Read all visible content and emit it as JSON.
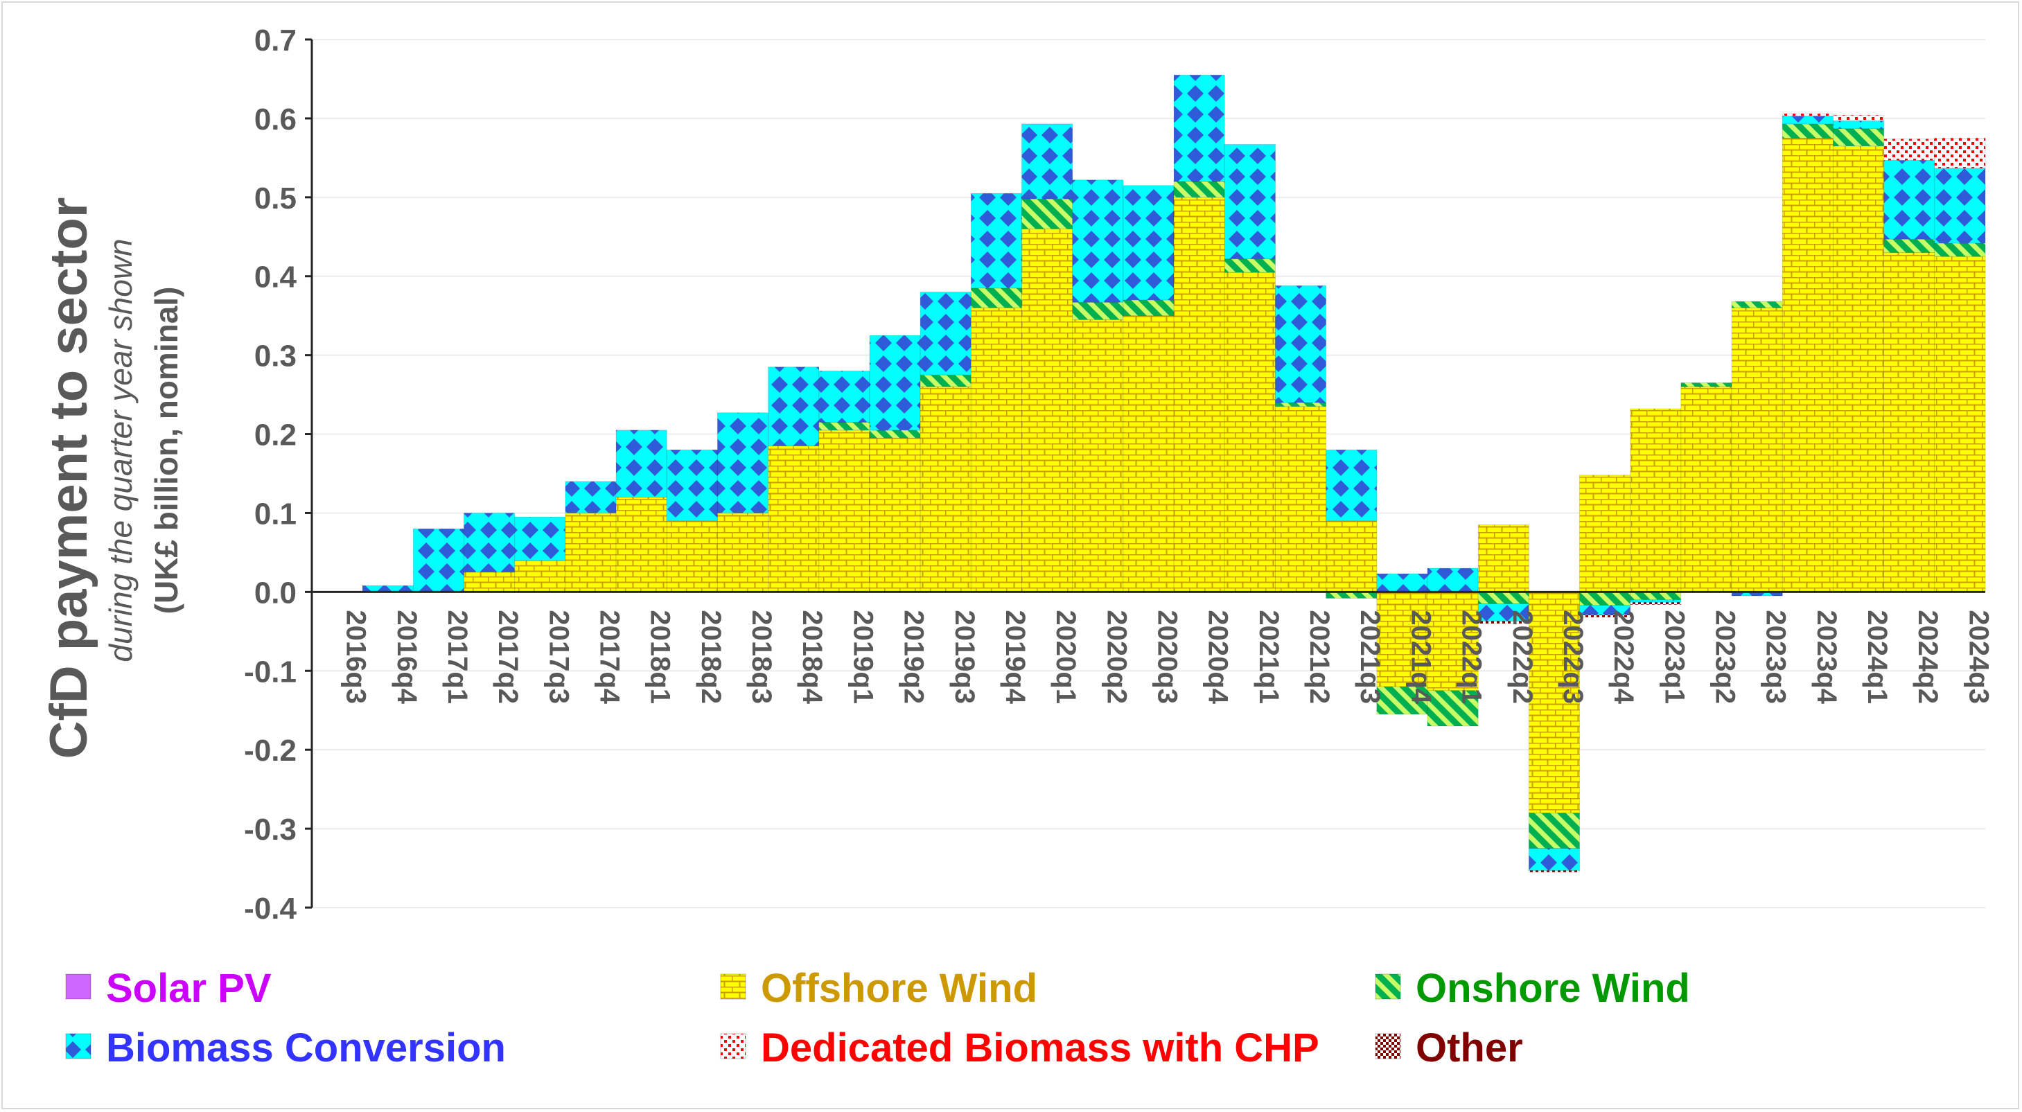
{
  "chart_data": {
    "type": "bar",
    "stacked": true,
    "title": "",
    "ylabel_main": "CfD payment to sector",
    "ylabel_sub": "during the quarter year shown",
    "ylabel_unit": "(UK£ billion, nominal)",
    "ylim": [
      -0.4,
      0.7
    ],
    "yticks": [
      "0.7",
      "0.6",
      "0.5",
      "0.4",
      "0.3",
      "0.2",
      "0.1",
      "0.0",
      "-0.1",
      "-0.2",
      "-0.3",
      "-0.4"
    ],
    "grid": true,
    "legend_position": "bottom",
    "categories": [
      "2016q3",
      "2016q4",
      "2017q1",
      "2017q2",
      "2017q3",
      "2017q4",
      "2018q1",
      "2018q2",
      "2018q3",
      "2018q4",
      "2019q1",
      "2019q2",
      "2019q3",
      "2019q4",
      "2020q1",
      "2020q2",
      "2020q3",
      "2020q4",
      "2021q1",
      "2021q2",
      "2021q3",
      "2021q4",
      "2022q1",
      "2022q2",
      "2022q3",
      "2022q4",
      "2023q1",
      "2023q2",
      "2023q3",
      "2023q4",
      "2024q1",
      "2024q2",
      "2024q3"
    ],
    "series": [
      {
        "name": "Solar PV",
        "color": "#cc66ff",
        "values": [
          0,
          0,
          0,
          0,
          0,
          0,
          0,
          0,
          0,
          0,
          0,
          0,
          0,
          0,
          0,
          0,
          0,
          0,
          0,
          0,
          0,
          0,
          0,
          0,
          0,
          0,
          0,
          0,
          0,
          0,
          0,
          0,
          0
        ]
      },
      {
        "name": "Offshore Wind",
        "color": "#ffff00",
        "values": [
          0,
          0,
          0,
          0.025,
          0.04,
          0.1,
          0.12,
          0.09,
          0.1,
          0.185,
          0.205,
          0.195,
          0.26,
          0.36,
          0.46,
          0.345,
          0.35,
          0.5,
          0.405,
          0.235,
          0.09,
          -0.12,
          -0.125,
          0.085,
          -0.28,
          0.148,
          0.232,
          0.26,
          0.36,
          0.575,
          0.565,
          0.43,
          0.425
        ]
      },
      {
        "name": "Onshore Wind",
        "color": "#00b050",
        "values": [
          0,
          0,
          0,
          0,
          0,
          0,
          0,
          0,
          0,
          0,
          0.01,
          0.01,
          0.015,
          0.025,
          0.038,
          0.022,
          0.02,
          0.02,
          0.017,
          0.005,
          -0.008,
          -0.035,
          -0.045,
          -0.015,
          -0.045,
          -0.017,
          -0.01,
          0.005,
          0.008,
          0.018,
          0.022,
          0.017,
          0.017
        ]
      },
      {
        "name": "Biomass Conversion",
        "color": "#00ffff",
        "values": [
          0,
          0.008,
          0.08,
          0.075,
          0.055,
          0.04,
          0.085,
          0.09,
          0.127,
          0.1,
          0.065,
          0.12,
          0.105,
          0.12,
          0.095,
          0.155,
          0.145,
          0.135,
          0.145,
          0.148,
          0.09,
          0.023,
          0.03,
          -0.022,
          -0.028,
          -0.012,
          -0.003,
          0,
          -0.005,
          0.01,
          0.01,
          0.1,
          0.095
        ]
      },
      {
        "name": "Dedicated Biomass with CHP",
        "color": "#ff0000",
        "values": [
          0,
          0,
          0,
          0,
          0,
          0,
          0,
          0,
          0,
          0,
          0,
          0,
          0,
          0,
          0,
          0,
          0,
          0,
          0,
          0,
          0,
          0,
          0,
          0,
          0,
          0,
          0,
          0,
          0,
          0.003,
          0.007,
          0.027,
          0.038
        ]
      },
      {
        "name": "Other",
        "color": "#800000",
        "values": [
          0,
          0,
          0,
          0,
          0,
          0,
          0,
          0,
          0,
          0,
          0,
          0,
          0,
          0,
          0,
          0,
          0,
          0,
          0,
          0,
          0,
          0,
          0,
          -0.003,
          -0.002,
          -0.003,
          -0.003,
          0,
          0,
          0,
          0,
          0,
          0
        ]
      }
    ]
  },
  "legend": [
    {
      "label": "Solar PV",
      "color": "#cc00ff",
      "icon": "solar-square-icon"
    },
    {
      "label": "Offshore Wind",
      "color": "#cc9900",
      "icon": "brick-pattern-icon"
    },
    {
      "label": "Onshore Wind",
      "color": "#009900",
      "icon": "diagonal-stripe-icon"
    },
    {
      "label": "Biomass Conversion",
      "color": "#3333ff",
      "icon": "diamond-pattern-icon"
    },
    {
      "label": "Dedicated Biomass with CHP",
      "color": "#ff0000",
      "icon": "dotted-pattern-icon"
    },
    {
      "label": "Other",
      "color": "#800000",
      "icon": "checker-pattern-icon"
    }
  ]
}
